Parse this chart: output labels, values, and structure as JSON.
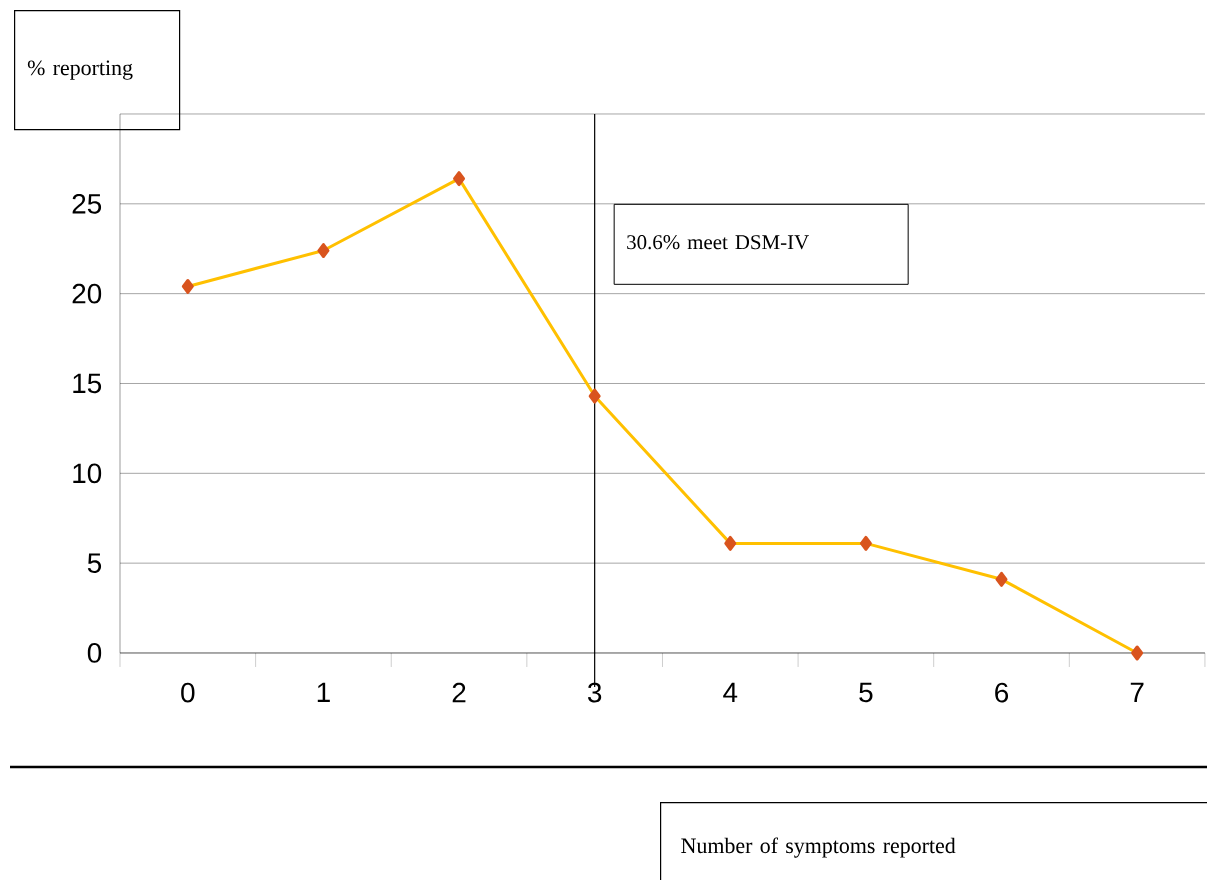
{
  "chart_data": {
    "type": "line",
    "annotations": [
      "Number of symptoms reported"
    ],
    "ylabel": "% reporting",
    "x": [
      0,
      1,
      2,
      3,
      4,
      5,
      6,
      7
    ],
    "values": [
      20.4,
      22.4,
      26.4,
      14.3,
      6.1,
      6.1,
      4.1,
      0
    ],
    "color": "#ffc000",
    "marker": "diamond",
    "xlim": [
      -0.5,
      7.5
    ],
    "xticks": [
      0,
      1,
      2,
      3,
      4,
      5,
      6,
      7,
      {
        "value": -0.5,
        "label": null
      },
      {
        "value": 0.5,
        "label": null
      },
      {
        "value": 1.5,
        "label": null
      },
      {
        "value": 2.5,
        "label": null
      },
      {
        "value": 3.5,
        "label": null
      },
      {
        "value": 4.5,
        "label": null
      },
      {
        "value": 5.5,
        "label": null
      },
      {
        "value": 6.5,
        "label": null
      },
      {
        "value": 7.5,
        "label": null
      }
    ],
    "ylim": [
      0,
      30
    ],
    "yticks": [
      0,
      5,
      10,
      15,
      20,
      25,
      {
        "value": 30,
        "label": null
      }
    ],
    "grid": "y",
    "ref_lines": [
      {
        "axis": "x",
        "value": 3,
        "label": "30.6% meet DSM-IV",
        "color": "#000000"
      }
    ]
  }
}
